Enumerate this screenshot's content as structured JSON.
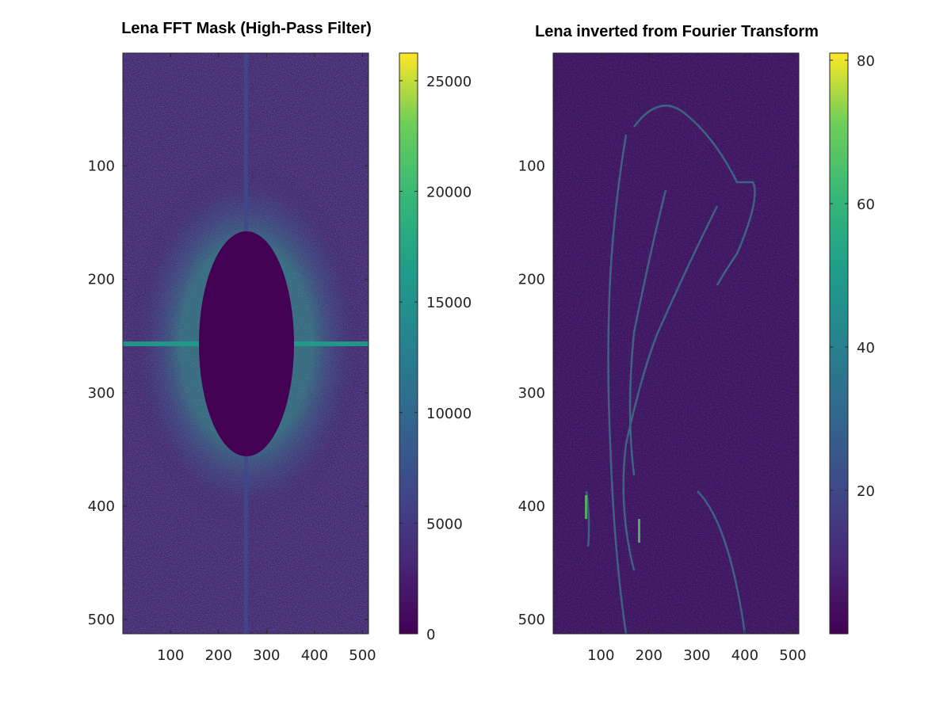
{
  "chart_data": [
    {
      "type": "heatmap",
      "title": "Lena FFT Mask (High-Pass Filter)",
      "colormap": "viridis",
      "x_ticks": [
        "100",
        "200",
        "300",
        "400",
        "500"
      ],
      "y_ticks": [
        "100",
        "200",
        "300",
        "400",
        "500"
      ],
      "xlim": [
        0.5,
        512.5
      ],
      "ylim": [
        0.5,
        512.5
      ],
      "x_tick_values": [
        100,
        200,
        300,
        400,
        500
      ],
      "y_tick_values": [
        100,
        200,
        300,
        400,
        500
      ],
      "colorbar": {
        "min": 0,
        "max": 26250,
        "ticks": [
          "0",
          "5000",
          "10000",
          "15000",
          "20000",
          "25000"
        ],
        "tick_values": [
          0,
          5000,
          10000,
          15000,
          20000,
          25000
        ]
      },
      "mask": {
        "shape": "ellipse",
        "center": [
          257,
          257
        ],
        "radius_x": 100,
        "radius_y": 140
      },
      "features": [
        "horizontal bright line at row 257",
        "vertical faint line at column 257",
        "bright speckle ring around masked ellipse"
      ]
    },
    {
      "type": "heatmap",
      "title": "Lena inverted from Fourier Transform",
      "colormap": "viridis",
      "x_ticks": [
        "100",
        "200",
        "300",
        "400",
        "500"
      ],
      "y_ticks": [
        "100",
        "200",
        "300",
        "400",
        "500"
      ],
      "xlim": [
        0.5,
        512.5
      ],
      "ylim": [
        0.5,
        512.5
      ],
      "x_tick_values": [
        100,
        200,
        300,
        400,
        500
      ],
      "y_tick_values": [
        100,
        200,
        300,
        400,
        500
      ],
      "colorbar": {
        "min": 0,
        "max": 81,
        "ticks": [
          "20",
          "40",
          "60",
          "80"
        ],
        "tick_values": [
          20,
          40,
          60,
          80
        ]
      },
      "features": [
        "edge map of Lena image (high-pass result)"
      ]
    }
  ],
  "colors": {
    "viridis_low": "#440154",
    "viridis_dark": "#3b1b6b",
    "viridis_mid": "#21918c",
    "viridis_light": "#5ec962",
    "viridis_high": "#fde725",
    "axis": "#262626"
  }
}
